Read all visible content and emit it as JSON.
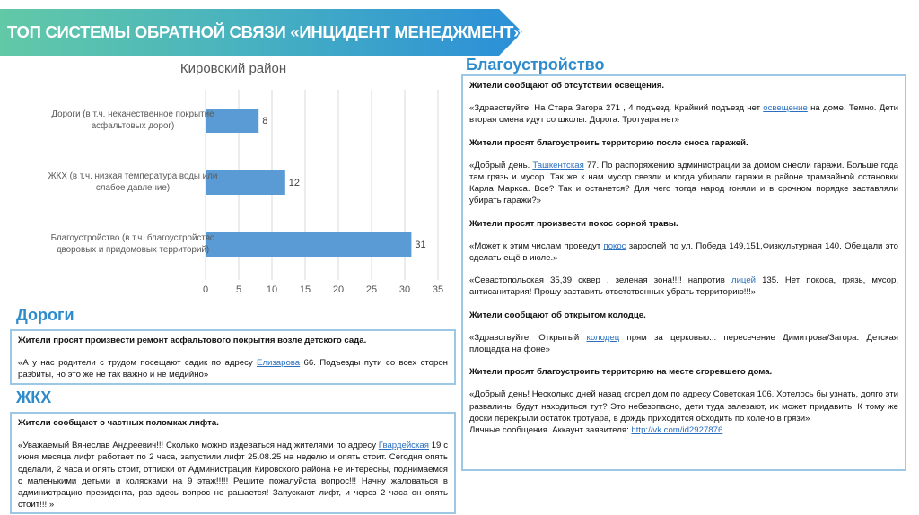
{
  "header": {
    "title": "ТОП СИСТЕМЫ ОБРАТНОЙ СВЯЗИ «ИНЦИДЕНТ МЕНЕДЖМЕНТ»"
  },
  "colors": {
    "banner_start": "#62c9a6",
    "banner_end": "#2b8fd8",
    "heading": "#2f8ccc",
    "bar": "#5b9bd5"
  },
  "chart_data": {
    "type": "bar",
    "orientation": "horizontal",
    "title": "Кировский район",
    "categories": [
      "Дороги (в т.ч. некачественное покрытие асфальтовых дорог)",
      "ЖКХ (в т.ч. низкая температура воды или слабое давление)",
      "Благоустройство (в т.ч. благоустройство дворовых и придомовых территорий)"
    ],
    "category_lines": [
      [
        "Дороги (в т.ч. некачественное покрытие",
        "асфальтовых дорог)"
      ],
      [
        "ЖКХ (в т.ч. низкая температура воды или",
        "слабое давление)"
      ],
      [
        "Благоустройство (в т.ч. благоустройство",
        "дворовых и придомовых территорий)"
      ]
    ],
    "values": [
      8,
      12,
      31
    ],
    "xlim": [
      0,
      35
    ],
    "ticks": [
      "0",
      "5",
      "10",
      "15",
      "20",
      "25",
      "30",
      "35"
    ],
    "grid": true,
    "xlabel": "",
    "ylabel": ""
  },
  "roads": {
    "heading": "Дороги",
    "title": "Жители просят произвести ремонт асфальтового покрытия возле детского сада.",
    "pre": "«А у нас родители с трудом посещают садик по адресу ",
    "link": "Елизарова",
    "post": " 66. Подъезды пути со всех сторон разбиты, но это же не так важно и не медийно»"
  },
  "housing": {
    "heading": "ЖКХ",
    "title": "Жители сообщают о частных поломках лифта.",
    "pre": "«Уважаемый Вячеслав Андреевич!!! Сколько можно издеваться над жителями по адресу ",
    "link": "Гвардейская",
    "post": " 19 с июня месяца лифт работает по 2 часа, запустили лифт 25.08.25 на неделю и опять стоит. Сегодня опять сделали, 2 часа и опять стоит, отписки от Администрации Кировского района не интересны, поднимаемся с маленькими детьми и колясками на 9 этаж!!!!! Решите пожалуйста вопрос!!! Начну жаловаться в администрацию президента, раз здесь вопрос не рашается! Запускают лифт, и через 2 часа он опять стоит!!!!»"
  },
  "improvement": {
    "heading": "Благоустройство",
    "items": [
      {
        "title": "Жители сообщают об отсутствии освещения.",
        "pre": "«Здравствуйте. На Стара Загора 271 , 4 подъезд. Крайний подъезд нет ",
        "link": "освещение",
        "post": " на доме. Темно. Дети вторая смена идут со школы. Дорога. Тротуара нет»"
      },
      {
        "title": "Жители просят благоустроить территорию после сноса гаражей.",
        "pre": "«Добрый день. ",
        "link": "Ташкентская",
        "post": " 77. По распоряжению администрации за домом снесли гаражи. Больше года там грязь и мусор. Так же к нам мусор свезли и когда убирали гаражи в районе трамвайной остановки Карла Маркса. Все? Так и останется? Для чего тогда народ гоняли и в срочном порядке заставляли убирать гаражи?»"
      },
      {
        "title": "Жители просят произвести покос сорной травы.",
        "pre": "«Может к этим числам проведут ",
        "link": "покос",
        "post": " зарослей по ул. Победа 149,151,Физкультурная 140. Обещали это сделать ещё в июле.»"
      },
      {
        "title": "",
        "pre": "«Севастопольская 35,39 сквер , зеленая зона!!!! напротив ",
        "link": "лицей",
        "post": " 135. Нет покоса, грязь, мусор, антисанитария! Прошу заставить ответственных убрать территорию!!!»"
      },
      {
        "title": "Жители сообщают об открытом колодце.",
        "pre": "«Здравствуйте. Открытый ",
        "link": "колодец",
        "post": " прям за церковью... пересечение Димитрова/Загора. Детская площадка на фоне»"
      },
      {
        "title": "Жители просят благоустроить территорию на месте сгоревшего дома.",
        "pre": "«Добрый день! Несколько дней назад сгорел дом по адресу Советская 106. Хотелось бы узнать, долго эти развалины будут находиться тут? Это небезопасно, дети туда залезают, их может придавить. К тому же доски перекрыли остаток тротуара, в дождь приходится обходить по колено в грязи»",
        "link": "",
        "post": ""
      }
    ],
    "account_label": "Личные сообщения. Аккаунт заявителя: ",
    "account_link": "http://vk.com/id2927876"
  }
}
